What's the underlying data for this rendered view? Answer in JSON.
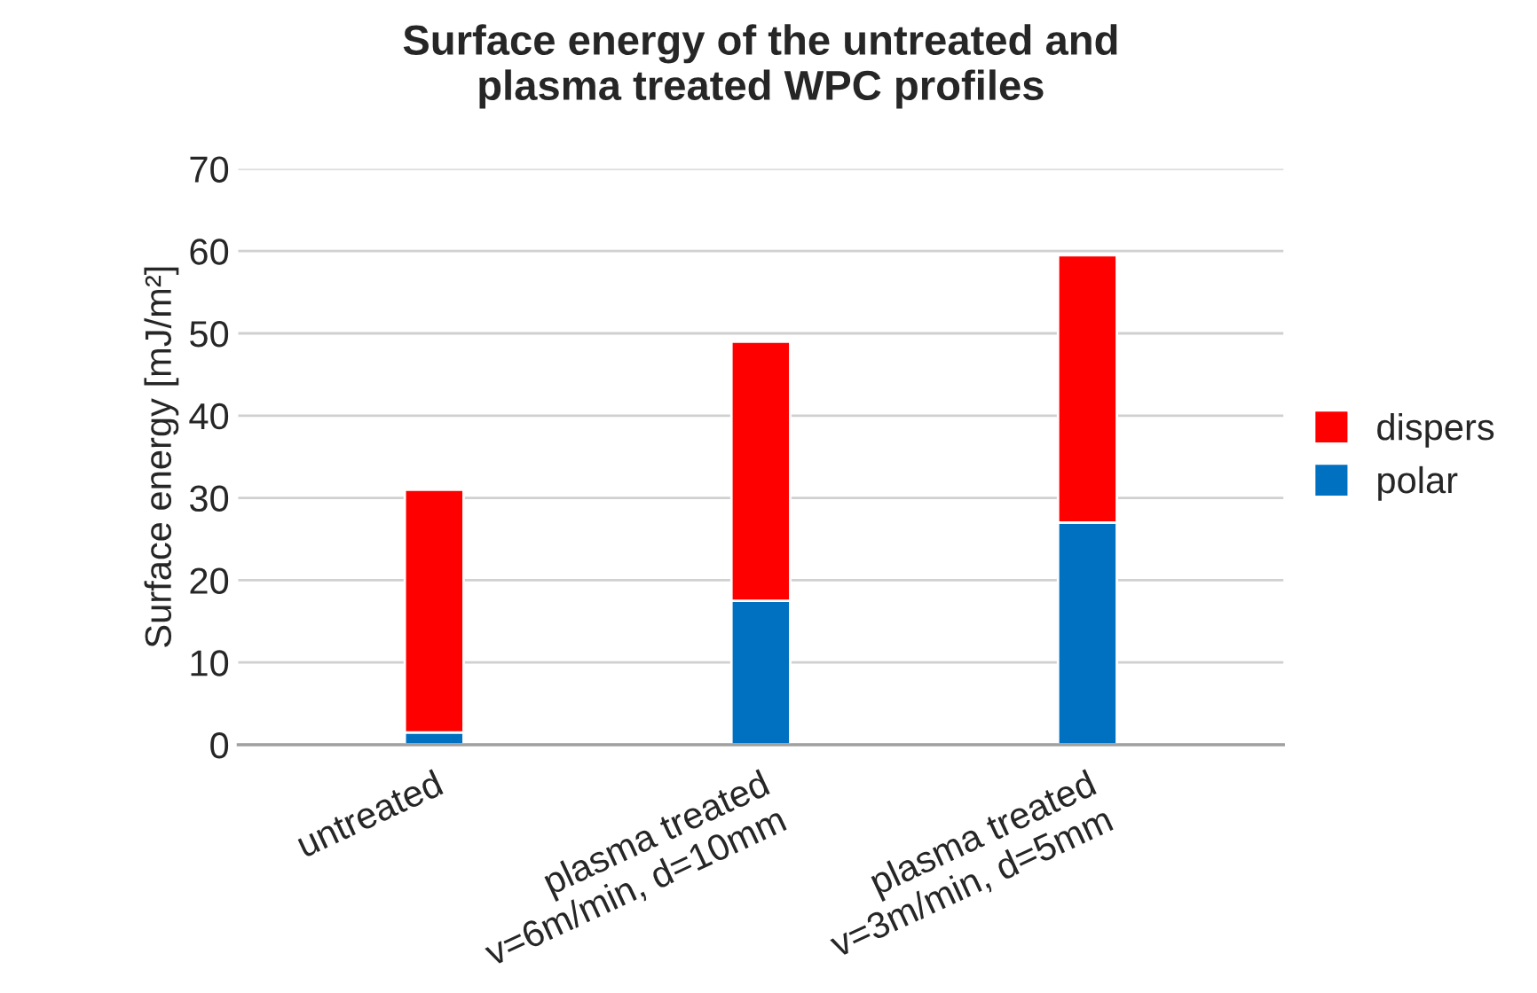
{
  "chart_data": {
    "type": "bar",
    "title": "Surface energy of the untreated and\nplasma treated WPC profiles",
    "ylabel": "Surface energy [mJ/m²]",
    "categories": [
      "untreated",
      "plasma treated\nv=6m/min, d=10mm",
      "plasma treated\nv=3m/min, d=5mm"
    ],
    "stacked": true,
    "series": [
      {
        "name": "polar",
        "color": "#0070c0",
        "values": [
          1.5,
          17.5,
          27
        ]
      },
      {
        "name": "dispers",
        "color": "#ff0000",
        "values": [
          29.5,
          31.5,
          32.5
        ]
      }
    ],
    "ylim": [
      0,
      70
    ],
    "yticks": [
      0,
      10,
      20,
      30,
      40,
      50,
      60,
      70
    ],
    "grid": "y",
    "legend": "right"
  }
}
